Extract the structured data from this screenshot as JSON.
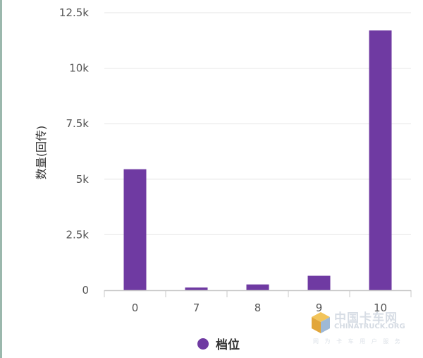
{
  "chart_data": {
    "type": "bar",
    "categories": [
      "0",
      "7",
      "8",
      "9",
      "10"
    ],
    "values": [
      5450,
      120,
      260,
      650,
      11700
    ],
    "ylabel": "数量(回传)",
    "xlabel": "",
    "ylim": [
      0,
      12500
    ],
    "yticks": [
      0,
      2500,
      5000,
      7500,
      10000,
      12500
    ],
    "ytick_labels": [
      "0",
      "2.5k",
      "5k",
      "7.5k",
      "10k",
      "12.5k"
    ],
    "series": [
      {
        "name": "档位",
        "values": [
          5450,
          120,
          260,
          650,
          11700
        ]
      }
    ],
    "grid": true,
    "legend_position": "bottom-center",
    "colors": {
      "bar": "#6f3aa2",
      "grid": "#e6e6e6",
      "axis": "#c9c9c9",
      "tick_text": "#555555"
    }
  },
  "legend": {
    "label": "档位"
  },
  "watermark": {
    "cn": "中国卡车网",
    "en": "CHINATRUCK.ORG",
    "sub": "网 为 卡 车 用 户 服 务"
  }
}
